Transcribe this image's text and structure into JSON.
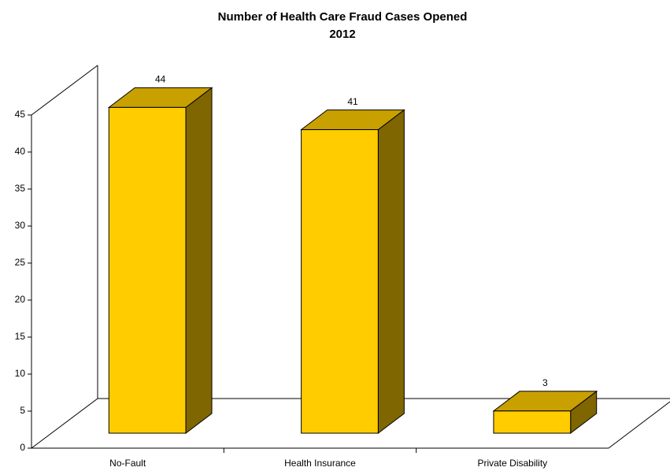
{
  "chart_data": {
    "type": "bar3d",
    "title": "Number of Health Care Fraud Cases Opened",
    "subtitle": "2012",
    "categories": [
      "No-Fault",
      "Health Insurance",
      "Private Disability"
    ],
    "values": [
      44,
      41,
      3
    ],
    "color": "#ffcc00",
    "ylim": [
      0,
      45
    ],
    "yticks": [
      0,
      5,
      10,
      15,
      20,
      25,
      30,
      35,
      40,
      45
    ],
    "value_labels_shown": true
  }
}
